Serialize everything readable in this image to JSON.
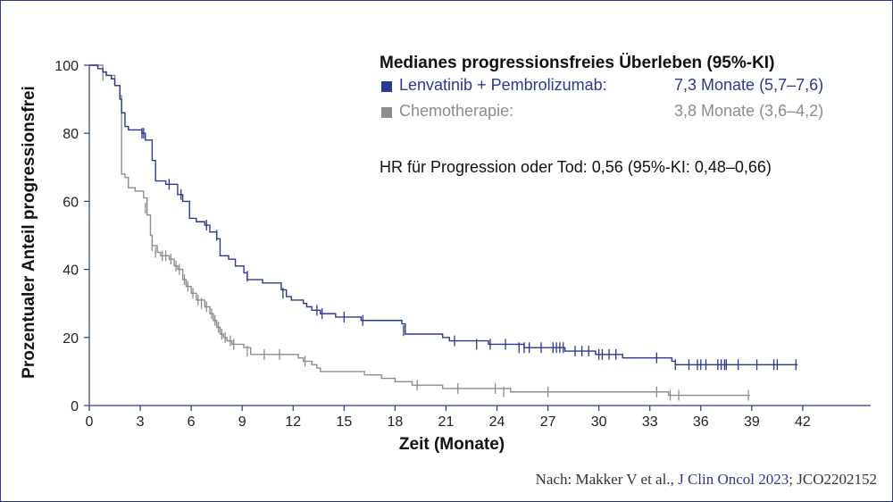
{
  "chart_data": {
    "type": "line",
    "title": "",
    "xlabel": "Zeit (Monate)",
    "ylabel": "Prozentualer Anteil progressionsfrei",
    "xlim": [
      0,
      46
    ],
    "ylim": [
      0,
      100
    ],
    "xticks": [
      "0",
      "3",
      "6",
      "9",
      "12",
      "15",
      "18",
      "21",
      "24",
      "27",
      "30",
      "33",
      "36",
      "39",
      "42"
    ],
    "yticks": [
      "0",
      "20",
      "40",
      "60",
      "80",
      "100"
    ],
    "legend": {
      "title": "Medianes progressionsfreies Überleben (95%-KI)",
      "entries": [
        {
          "name": "Lenvatinib + Pembrolizumab:",
          "value": "7,3 Monate (5,7–7,6)"
        },
        {
          "name": "Chemotherapie:",
          "value": "3,8 Monate (3,6–4,2)"
        }
      ]
    },
    "annotation": "HR für Progression oder Tod: 0,56 (95%-KI: 0,48–0,66)",
    "source": {
      "prefix": "Nach: Makker V et al., ",
      "journal": "J Clin Oncol 2023",
      "suffix": "; JCO2202152"
    },
    "colors": {
      "series1": "#2b3990",
      "series2": "#8c8c8c",
      "axis": "#2b3990"
    },
    "series": [
      {
        "name": "Lenvatinib + Pembrolizumab",
        "color": "#2b3990",
        "points": [
          [
            0,
            100
          ],
          [
            0.5,
            99
          ],
          [
            0.8,
            98
          ],
          [
            1.0,
            97
          ],
          [
            1.3,
            96
          ],
          [
            1.5,
            94
          ],
          [
            1.8,
            90
          ],
          [
            1.9,
            86
          ],
          [
            2.1,
            82
          ],
          [
            2.3,
            81
          ],
          [
            3.1,
            80
          ],
          [
            3.3,
            78
          ],
          [
            3.7,
            72
          ],
          [
            3.9,
            66
          ],
          [
            4.5,
            65
          ],
          [
            5.2,
            62
          ],
          [
            5.5,
            60
          ],
          [
            5.9,
            55
          ],
          [
            6.3,
            54
          ],
          [
            6.8,
            53
          ],
          [
            7.1,
            51
          ],
          [
            7.5,
            49
          ],
          [
            7.7,
            44
          ],
          [
            8.2,
            43
          ],
          [
            8.6,
            41
          ],
          [
            9.1,
            39
          ],
          [
            9.3,
            37
          ],
          [
            10.2,
            36
          ],
          [
            11.3,
            34
          ],
          [
            11.6,
            32
          ],
          [
            11.9,
            31
          ],
          [
            12.6,
            30
          ],
          [
            12.8,
            29
          ],
          [
            13.1,
            28
          ],
          [
            13.6,
            27
          ],
          [
            14.5,
            26
          ],
          [
            16.0,
            25
          ],
          [
            18.4,
            24
          ],
          [
            18.6,
            21
          ],
          [
            20.8,
            20
          ],
          [
            21.2,
            19
          ],
          [
            23.5,
            18
          ],
          [
            25.6,
            17
          ],
          [
            28.0,
            16
          ],
          [
            29.8,
            15
          ],
          [
            31.4,
            14
          ],
          [
            34.3,
            13
          ],
          [
            34.5,
            12
          ],
          [
            41.7,
            12
          ]
        ],
        "censored": [
          [
            3.1,
            80
          ],
          [
            3.2,
            80
          ],
          [
            4.7,
            65
          ],
          [
            5.4,
            62
          ],
          [
            6.9,
            53
          ],
          [
            7.5,
            50
          ],
          [
            9.3,
            38
          ],
          [
            11.4,
            33
          ],
          [
            13.4,
            28
          ],
          [
            13.7,
            27
          ],
          [
            15.0,
            26
          ],
          [
            16.1,
            25
          ],
          [
            18.5,
            22
          ],
          [
            21.5,
            19
          ],
          [
            22.8,
            18
          ],
          [
            23.6,
            18
          ],
          [
            24.5,
            18
          ],
          [
            25.3,
            17
          ],
          [
            25.6,
            17
          ],
          [
            25.9,
            17
          ],
          [
            26.6,
            17
          ],
          [
            27.3,
            17
          ],
          [
            27.5,
            17
          ],
          [
            27.7,
            17
          ],
          [
            27.9,
            17
          ],
          [
            28.6,
            16
          ],
          [
            29.0,
            16
          ],
          [
            29.4,
            16
          ],
          [
            30.0,
            15
          ],
          [
            30.2,
            15
          ],
          [
            30.6,
            15
          ],
          [
            31.0,
            15
          ],
          [
            33.4,
            14
          ],
          [
            34.5,
            12
          ],
          [
            35.3,
            12
          ],
          [
            35.8,
            12
          ],
          [
            36.0,
            12
          ],
          [
            36.3,
            12
          ],
          [
            37.0,
            12
          ],
          [
            37.2,
            12
          ],
          [
            37.4,
            12
          ],
          [
            37.5,
            12
          ],
          [
            38.2,
            12
          ],
          [
            39.3,
            12
          ],
          [
            40.3,
            12
          ],
          [
            40.5,
            12
          ],
          [
            41.6,
            12
          ]
        ]
      },
      {
        "name": "Chemotherapie",
        "color": "#8c8c8c",
        "points": [
          [
            0,
            100
          ],
          [
            0.8,
            98
          ],
          [
            1.0,
            97
          ],
          [
            1.5,
            94
          ],
          [
            1.8,
            91
          ],
          [
            1.9,
            68
          ],
          [
            2.1,
            67
          ],
          [
            2.3,
            64
          ],
          [
            2.7,
            63
          ],
          [
            3.2,
            61
          ],
          [
            3.4,
            56
          ],
          [
            3.6,
            50
          ],
          [
            3.7,
            47
          ],
          [
            4.0,
            45
          ],
          [
            4.2,
            44
          ],
          [
            4.7,
            43
          ],
          [
            5.0,
            41
          ],
          [
            5.2,
            40
          ],
          [
            5.5,
            37
          ],
          [
            5.7,
            35
          ],
          [
            6.0,
            33
          ],
          [
            6.3,
            31
          ],
          [
            6.8,
            29
          ],
          [
            7.1,
            27
          ],
          [
            7.3,
            25
          ],
          [
            7.5,
            23
          ],
          [
            7.7,
            21
          ],
          [
            7.9,
            20
          ],
          [
            8.1,
            19
          ],
          [
            8.4,
            18
          ],
          [
            9.1,
            17
          ],
          [
            9.5,
            15
          ],
          [
            12.3,
            14
          ],
          [
            12.6,
            13
          ],
          [
            13.1,
            12
          ],
          [
            13.4,
            11
          ],
          [
            13.6,
            10
          ],
          [
            16.2,
            9
          ],
          [
            17.2,
            8
          ],
          [
            18.0,
            7
          ],
          [
            19.0,
            6
          ],
          [
            20.8,
            5
          ],
          [
            24.8,
            4
          ],
          [
            33.3,
            4
          ],
          [
            34.1,
            3
          ],
          [
            38.9,
            3
          ]
        ],
        "censored": [
          [
            0.8,
            97
          ],
          [
            3.3,
            58
          ],
          [
            3.7,
            47
          ],
          [
            3.9,
            45
          ],
          [
            4.3,
            44
          ],
          [
            4.5,
            44
          ],
          [
            4.8,
            43
          ],
          [
            5.1,
            41
          ],
          [
            5.3,
            40
          ],
          [
            5.6,
            37
          ],
          [
            5.8,
            35
          ],
          [
            6.1,
            33
          ],
          [
            6.4,
            31
          ],
          [
            6.6,
            30
          ],
          [
            6.9,
            29
          ],
          [
            7.2,
            27
          ],
          [
            7.4,
            25
          ],
          [
            7.6,
            23
          ],
          [
            7.8,
            21
          ],
          [
            8.0,
            20
          ],
          [
            8.3,
            19
          ],
          [
            8.5,
            18
          ],
          [
            9.3,
            16
          ],
          [
            10.3,
            15
          ],
          [
            11.2,
            15
          ],
          [
            12.7,
            13
          ],
          [
            19.3,
            6
          ],
          [
            21.7,
            5
          ],
          [
            23.9,
            5
          ],
          [
            24.4,
            4
          ],
          [
            27.0,
            4
          ],
          [
            33.4,
            4
          ],
          [
            34.2,
            3
          ],
          [
            34.7,
            3
          ],
          [
            38.8,
            3
          ]
        ]
      }
    ]
  }
}
